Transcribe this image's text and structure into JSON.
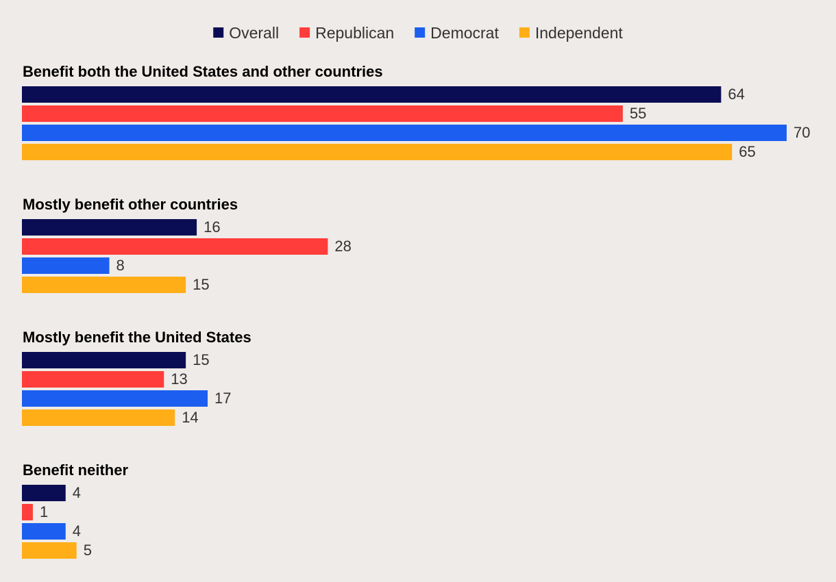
{
  "chart_data": {
    "type": "bar",
    "orientation": "horizontal",
    "legend_position": "top-center",
    "grid": false,
    "xlim": [
      0,
      70
    ],
    "categories": [
      "Benefit both the United States and other countries",
      "Mostly benefit other countries",
      "Mostly benefit the United States",
      "Benefit neither"
    ],
    "series": [
      {
        "name": "Overall",
        "color": "#0b0d54",
        "values": [
          64,
          16,
          15,
          4
        ]
      },
      {
        "name": "Republican",
        "color": "#ff3d3a",
        "values": [
          55,
          28,
          13,
          1
        ]
      },
      {
        "name": "Democrat",
        "color": "#1c5ff0",
        "values": [
          70,
          8,
          17,
          4
        ]
      },
      {
        "name": "Independent",
        "color": "#ffae17",
        "values": [
          65,
          15,
          14,
          5
        ]
      }
    ]
  }
}
